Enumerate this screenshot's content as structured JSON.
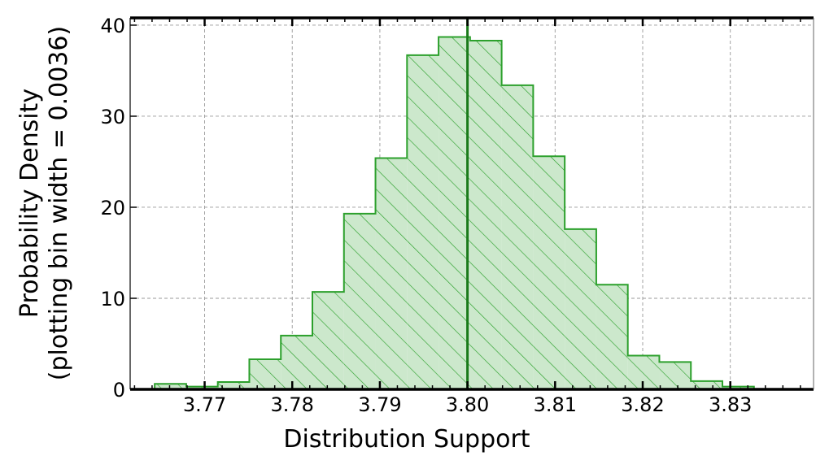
{
  "chart_data": {
    "type": "histogram",
    "title": "",
    "xlabel": "Distribution Support",
    "ylabel_line1": "Probability Density",
    "ylabel_line2": "(plotting bin width = 0.0036)",
    "bin_width": 0.0036,
    "x_range": [
      3.7615,
      3.8395
    ],
    "y_range": [
      0,
      40.8
    ],
    "x_ticks": [
      3.77,
      3.78,
      3.79,
      3.8,
      3.81,
      3.82,
      3.83
    ],
    "x_tick_labels": [
      "3.77",
      "3.78",
      "3.79",
      "3.80",
      "3.81",
      "3.82",
      "3.83"
    ],
    "y_ticks": [
      0,
      10,
      20,
      30,
      40
    ],
    "y_tick_labels": [
      "0",
      "10",
      "20",
      "30",
      "40"
    ],
    "bins_start": 3.7643,
    "bin_densities": [
      0.6,
      0.3,
      0.8,
      3.3,
      5.9,
      10.7,
      19.3,
      25.4,
      36.7,
      38.7,
      38.3,
      33.4,
      25.6,
      17.6,
      11.5,
      3.7,
      3.0,
      0.9,
      0.3
    ],
    "reference_line_x": 3.8,
    "grid": true,
    "hatch": "diagonal",
    "colors": {
      "fill": "#cce8cc",
      "edge": "#2ca02c",
      "hatch": "#2ca02c",
      "ref_line": "#1a7a1a",
      "grid": "#999999"
    }
  }
}
